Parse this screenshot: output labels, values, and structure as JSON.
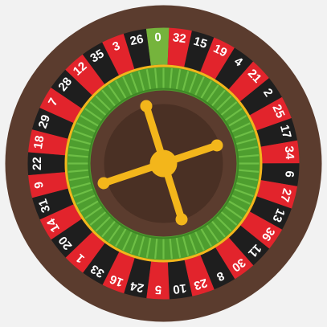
{
  "wheel": {
    "numbers": [
      {
        "label": "0",
        "color": "green"
      },
      {
        "label": "32",
        "color": "red"
      },
      {
        "label": "15",
        "color": "black"
      },
      {
        "label": "19",
        "color": "red"
      },
      {
        "label": "4",
        "color": "black"
      },
      {
        "label": "21",
        "color": "red"
      },
      {
        "label": "2",
        "color": "black"
      },
      {
        "label": "25",
        "color": "red"
      },
      {
        "label": "17",
        "color": "black"
      },
      {
        "label": "34",
        "color": "red"
      },
      {
        "label": "6",
        "color": "black"
      },
      {
        "label": "27",
        "color": "red"
      },
      {
        "label": "13",
        "color": "black"
      },
      {
        "label": "36",
        "color": "red"
      },
      {
        "label": "11",
        "color": "black"
      },
      {
        "label": "30",
        "color": "red"
      },
      {
        "label": "8",
        "color": "black"
      },
      {
        "label": "23",
        "color": "red"
      },
      {
        "label": "10",
        "color": "black"
      },
      {
        "label": "5",
        "color": "red"
      },
      {
        "label": "24",
        "color": "black"
      },
      {
        "label": "16",
        "color": "red"
      },
      {
        "label": "33",
        "color": "black"
      },
      {
        "label": "1",
        "color": "red"
      },
      {
        "label": "20",
        "color": "black"
      },
      {
        "label": "14",
        "color": "red"
      },
      {
        "label": "31",
        "color": "black"
      },
      {
        "label": "9",
        "color": "red"
      },
      {
        "label": "22",
        "color": "black"
      },
      {
        "label": "18",
        "color": "red"
      },
      {
        "label": "29",
        "color": "black"
      },
      {
        "label": "7",
        "color": "red"
      },
      {
        "label": "28",
        "color": "black"
      },
      {
        "label": "12",
        "color": "red"
      },
      {
        "label": "35",
        "color": "black"
      },
      {
        "label": "3",
        "color": "red"
      },
      {
        "label": "26",
        "color": "black"
      }
    ],
    "colors": {
      "background": "#f2f2f2",
      "rim": "#5b3c2e",
      "red": "#e2242c",
      "black": "#1e1e1e",
      "green": "#75b43c",
      "track_green": "#4e9e2f",
      "track_light": "#6ebf46",
      "track_dark": "#3f8726",
      "ring_gold": "#f3b61b",
      "cone": "#5b3c2e",
      "cone_inner": "#4a3024",
      "turret": "#f3b61b"
    }
  }
}
